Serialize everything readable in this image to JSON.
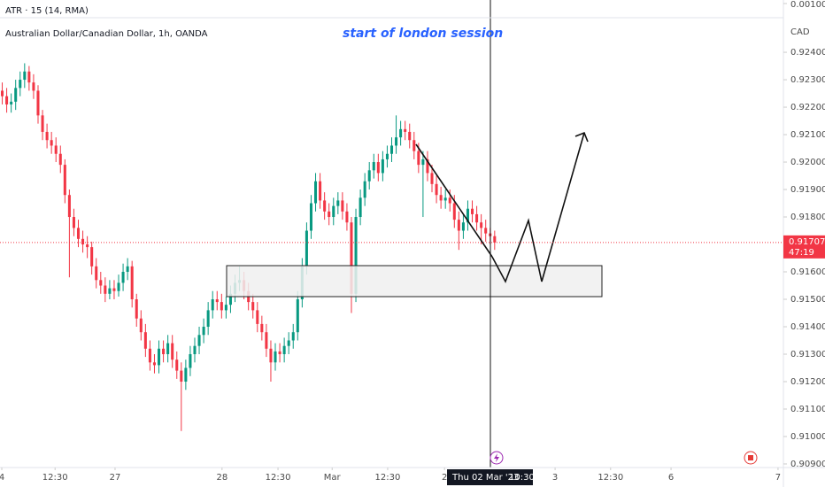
{
  "chart_data": {
    "type": "candlestick",
    "title": "Australian Dollar/Canadian Dollar, 1h, OANDA",
    "annotation": "start of london session",
    "unit": "CAD",
    "atr": {
      "title": "ATR · 15 (14, RMA)",
      "yticks": [
        {
          "value": 0.001,
          "label": "0.00100"
        }
      ]
    },
    "up_color": "#089981",
    "down_color": "#f23645",
    "grid": false,
    "open": [
      0.9226,
      0.9224,
      0.9221,
      0.9222,
      0.9227,
      0.923,
      0.9233,
      0.9229,
      0.9226,
      0.9217,
      0.9211,
      0.9208,
      0.9206,
      0.9203,
      0.9199,
      0.9188,
      0.918,
      0.9176,
      0.9172,
      0.917,
      0.9169,
      0.9162,
      0.9157,
      0.9155,
      0.9152,
      0.9154,
      0.9153,
      0.9156,
      0.916,
      0.9162,
      0.915,
      0.9143,
      0.9138,
      0.9132,
      0.9127,
      0.9126,
      0.9132,
      0.913,
      0.9134,
      0.9128,
      0.9124,
      0.912,
      0.9125,
      0.913,
      0.9133,
      0.9137,
      0.914,
      0.9146,
      0.915,
      0.9149,
      0.9146,
      0.9148,
      0.9152,
      0.9156,
      0.9157,
      0.9153,
      0.9149,
      0.9146,
      0.9141,
      0.9138,
      0.9132,
      0.9127,
      0.9131,
      0.913,
      0.9133,
      0.9135,
      0.9138,
      0.915,
      0.9162,
      0.9175,
      0.9185,
      0.9193,
      0.9186,
      0.9182,
      0.918,
      0.9184,
      0.9186,
      0.9182,
      0.9178,
      0.9152,
      0.918,
      0.9187,
      0.9193,
      0.9197,
      0.92,
      0.9196,
      0.9201,
      0.9203,
      0.9206,
      0.9209,
      0.9212,
      0.9211,
      0.9208,
      0.9204,
      0.9199,
      0.9201,
      0.9196,
      0.9192,
      0.9188,
      0.9186,
      0.9187,
      0.9185,
      0.9179,
      0.9175,
      0.9178,
      0.9183,
      0.9181,
      0.9178,
      0.9176,
      0.9174,
      0.9173
    ],
    "high": [
      0.9229,
      0.9227,
      0.9225,
      0.923,
      0.9233,
      0.9236,
      0.9235,
      0.9232,
      0.9228,
      0.9219,
      0.9214,
      0.9211,
      0.9209,
      0.9206,
      0.9201,
      0.919,
      0.9183,
      0.9179,
      0.9175,
      0.9173,
      0.9171,
      0.9165,
      0.916,
      0.9158,
      0.9157,
      0.9157,
      0.9159,
      0.9163,
      0.9165,
      0.9164,
      0.9152,
      0.9146,
      0.9141,
      0.9135,
      0.913,
      0.9135,
      0.9135,
      0.9137,
      0.9137,
      0.9131,
      0.9127,
      0.9128,
      0.9133,
      0.9136,
      0.914,
      0.9143,
      0.9149,
      0.9153,
      0.9153,
      0.9152,
      0.9151,
      0.9155,
      0.9159,
      0.9162,
      0.916,
      0.9156,
      0.9152,
      0.9149,
      0.9144,
      0.9141,
      0.9135,
      0.9134,
      0.9134,
      0.9136,
      0.9138,
      0.9141,
      0.9153,
      0.9165,
      0.9178,
      0.9188,
      0.9196,
      0.9196,
      0.9189,
      0.9185,
      0.9187,
      0.9189,
      0.9189,
      0.9185,
      0.918,
      0.9183,
      0.919,
      0.9196,
      0.92,
      0.9203,
      0.9203,
      0.9204,
      0.9206,
      0.9209,
      0.9217,
      0.9215,
      0.9215,
      0.9214,
      0.9211,
      0.9207,
      0.9204,
      0.9204,
      0.9199,
      0.9195,
      0.9191,
      0.919,
      0.919,
      0.9188,
      0.9182,
      0.9181,
      0.9186,
      0.9186,
      0.9184,
      0.9181,
      0.9179,
      0.9176,
      0.9175
    ],
    "low": [
      0.9221,
      0.9218,
      0.9218,
      0.9219,
      0.9224,
      0.9227,
      0.9226,
      0.9223,
      0.9214,
      0.9208,
      0.9205,
      0.9203,
      0.92,
      0.9196,
      0.9185,
      0.9158,
      0.9173,
      0.9169,
      0.9167,
      0.9165,
      0.9159,
      0.9154,
      0.9152,
      0.9149,
      0.915,
      0.915,
      0.9151,
      0.9153,
      0.9157,
      0.9147,
      0.914,
      0.9135,
      0.9129,
      0.9124,
      0.9123,
      0.9123,
      0.9127,
      0.9127,
      0.9125,
      0.9121,
      0.9102,
      0.9117,
      0.9122,
      0.9127,
      0.913,
      0.9134,
      0.9137,
      0.9143,
      0.9146,
      0.9143,
      0.9143,
      0.9145,
      0.9149,
      0.9153,
      0.915,
      0.9146,
      0.9143,
      0.9138,
      0.9135,
      0.9129,
      0.912,
      0.9124,
      0.9127,
      0.9127,
      0.913,
      0.9132,
      0.9135,
      0.9147,
      0.9159,
      0.9172,
      0.9182,
      0.9183,
      0.9179,
      0.9177,
      0.9177,
      0.9181,
      0.9179,
      0.9175,
      0.9145,
      0.9149,
      0.9177,
      0.9184,
      0.919,
      0.9194,
      0.9193,
      0.9193,
      0.9198,
      0.92,
      0.9203,
      0.9206,
      0.9208,
      0.9205,
      0.9201,
      0.9196,
      0.918,
      0.9193,
      0.9189,
      0.9185,
      0.9183,
      0.9183,
      0.9182,
      0.9176,
      0.9168,
      0.9172,
      0.9175,
      0.9178,
      0.9175,
      0.917,
      0.9171,
      0.917,
      0.9168
    ],
    "close": [
      0.9224,
      0.9221,
      0.9222,
      0.9227,
      0.923,
      0.9233,
      0.9229,
      0.9226,
      0.9217,
      0.9211,
      0.9208,
      0.9206,
      0.9203,
      0.9199,
      0.9188,
      0.918,
      0.9176,
      0.9172,
      0.917,
      0.9169,
      0.9162,
      0.9157,
      0.9155,
      0.9152,
      0.9154,
      0.9153,
      0.9156,
      0.916,
      0.9162,
      0.915,
      0.9143,
      0.9138,
      0.9132,
      0.9127,
      0.9126,
      0.9132,
      0.913,
      0.9134,
      0.9128,
      0.9124,
      0.912,
      0.9125,
      0.913,
      0.9133,
      0.9137,
      0.914,
      0.9146,
      0.915,
      0.9149,
      0.9146,
      0.9148,
      0.9152,
      0.9156,
      0.9157,
      0.9153,
      0.9149,
      0.9146,
      0.9141,
      0.9138,
      0.9132,
      0.9127,
      0.9131,
      0.913,
      0.9133,
      0.9135,
      0.9138,
      0.915,
      0.9162,
      0.9175,
      0.9185,
      0.9193,
      0.9186,
      0.9182,
      0.918,
      0.9184,
      0.9186,
      0.9182,
      0.9178,
      0.9152,
      0.918,
      0.9187,
      0.9193,
      0.9197,
      0.92,
      0.9196,
      0.9201,
      0.9203,
      0.9206,
      0.9209,
      0.9212,
      0.9211,
      0.9208,
      0.9204,
      0.9199,
      0.9201,
      0.9196,
      0.9192,
      0.9188,
      0.9186,
      0.9187,
      0.9185,
      0.9179,
      0.9175,
      0.9178,
      0.9183,
      0.9181,
      0.9178,
      0.9176,
      0.9174,
      0.9173,
      0.91707
    ],
    "last_price": {
      "value": 0.91707,
      "label": "0.91707"
    },
    "countdown": "47:19",
    "crosshair": {
      "date": "Thu 02 Mar '23",
      "time": "10:30"
    },
    "ylim": [
      0.90887,
      0.92526
    ],
    "yticks": [
      {
        "value": 0.924,
        "label": "0.92400"
      },
      {
        "value": 0.923,
        "label": "0.92300"
      },
      {
        "value": 0.922,
        "label": "0.92200"
      },
      {
        "value": 0.921,
        "label": "0.92100"
      },
      {
        "value": 0.92,
        "label": "0.92000"
      },
      {
        "value": 0.919,
        "label": "0.91900"
      },
      {
        "value": 0.918,
        "label": "0.91800"
      },
      {
        "value": 0.916,
        "label": "0.91600"
      },
      {
        "value": 0.915,
        "label": "0.91500"
      },
      {
        "value": 0.914,
        "label": "0.91400"
      },
      {
        "value": 0.913,
        "label": "0.91300"
      },
      {
        "value": 0.912,
        "label": "0.91200"
      },
      {
        "value": 0.911,
        "label": "0.91100"
      },
      {
        "value": 0.91,
        "label": "0.91000"
      },
      {
        "value": 0.909,
        "label": "0.90900"
      }
    ],
    "xlim": [
      -0.5,
      174.5
    ],
    "xticks": [
      {
        "value": -0.1,
        "label": "4"
      },
      {
        "value": 11.8,
        "label": "12:30"
      },
      {
        "value": 25.2,
        "label": "27"
      },
      {
        "value": 49.1,
        "label": "28"
      },
      {
        "value": 61.6,
        "label": "12:30"
      },
      {
        "value": 73.7,
        "label": "Mar"
      },
      {
        "value": 86.1,
        "label": "12:30"
      },
      {
        "value": 98.8,
        "label": "2"
      },
      {
        "value": 123.5,
        "label": "3"
      },
      {
        "value": 135.9,
        "label": "12:30"
      },
      {
        "value": 149.4,
        "label": "6"
      },
      {
        "value": 173.3,
        "label": "7"
      }
    ]
  }
}
